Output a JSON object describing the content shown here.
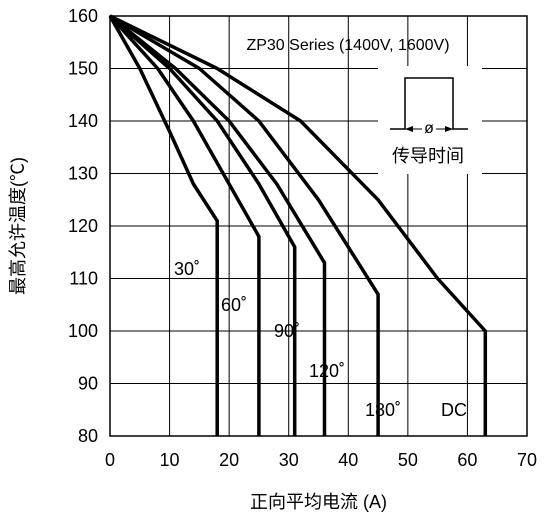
{
  "chart_data": {
    "type": "line",
    "title": "ZP30 Series (1400V, 1600V)",
    "xlabel": "正向平均电流 (A)",
    "ylabel": "最高允许温度(℃)",
    "xlim": [
      0,
      70
    ],
    "ylim": [
      80,
      160
    ],
    "xticks": [
      0,
      10,
      20,
      30,
      40,
      50,
      60,
      70
    ],
    "yticks": [
      80,
      90,
      100,
      110,
      120,
      130,
      140,
      150,
      160
    ],
    "grid": true,
    "series": [
      {
        "name": "30˚",
        "points": [
          [
            0,
            160
          ],
          [
            5,
            150
          ],
          [
            10,
            138
          ],
          [
            14,
            128
          ],
          [
            18,
            121
          ],
          [
            18,
            80
          ]
        ]
      },
      {
        "name": "60˚",
        "points": [
          [
            0,
            160
          ],
          [
            8,
            150
          ],
          [
            14,
            140
          ],
          [
            20,
            128
          ],
          [
            25,
            118
          ],
          [
            25,
            80
          ]
        ]
      },
      {
        "name": "90˚",
        "points": [
          [
            0,
            160
          ],
          [
            10,
            150
          ],
          [
            18,
            140
          ],
          [
            25,
            128
          ],
          [
            31,
            116
          ],
          [
            31,
            80
          ]
        ]
      },
      {
        "name": "120˚",
        "points": [
          [
            0,
            160
          ],
          [
            11,
            150
          ],
          [
            20,
            140
          ],
          [
            28,
            128
          ],
          [
            36,
            113
          ],
          [
            36,
            80
          ]
        ]
      },
      {
        "name": "180˚",
        "points": [
          [
            0,
            160
          ],
          [
            15,
            150
          ],
          [
            25,
            140
          ],
          [
            35,
            125
          ],
          [
            45,
            107
          ],
          [
            45,
            80
          ]
        ]
      },
      {
        "name": "DC",
        "points": [
          [
            0,
            160
          ],
          [
            18,
            150
          ],
          [
            32,
            140
          ],
          [
            45,
            125
          ],
          [
            55,
            110
          ],
          [
            63,
            100
          ],
          [
            63,
            80
          ]
        ]
      }
    ],
    "annotation": {
      "label": "传导时间",
      "symbol": "ø"
    }
  }
}
